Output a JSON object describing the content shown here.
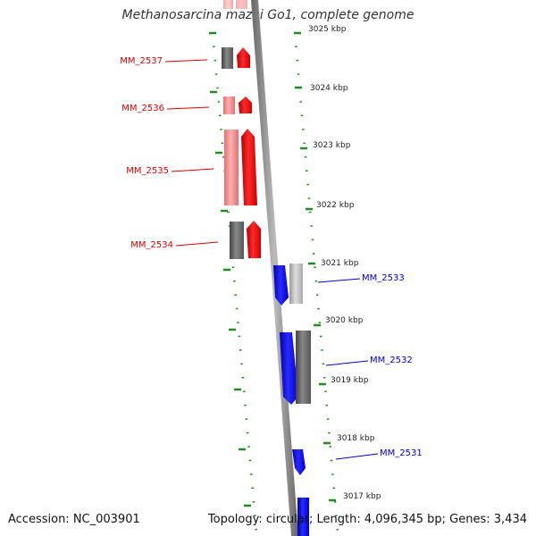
{
  "title": "Methanosarcina mazei Go1, complete genome",
  "accession_label": "Accession: NC_003901",
  "summary_label": "Topology: circular; Length: 4,096,345 bp; Genes: 3,434",
  "ticks": [
    "3025 kbp",
    "3024 kbp",
    "3023 kbp",
    "3022 kbp",
    "3021 kbp",
    "3020 kbp",
    "3019 kbp",
    "3018 kbp",
    "3017 kbp"
  ],
  "genes_forward": [
    {
      "name": "MM_2537",
      "color": "#dd0000"
    },
    {
      "name": "MM_2536",
      "color": "#dd0000"
    },
    {
      "name": "MM_2535",
      "color": "#dd0000"
    },
    {
      "name": "MM_2534",
      "color": "#dd0000"
    }
  ],
  "genes_reverse": [
    {
      "name": "MM_2533",
      "color": "#0000cc"
    },
    {
      "name": "MM_2532",
      "color": "#0000cc"
    },
    {
      "name": "MM_2531",
      "color": "#0000cc"
    }
  ],
  "colors": {
    "forward": "#ff0000",
    "forward_light": "#f08080",
    "reverse": "#0000ff",
    "gray": "#666666",
    "light_gray": "#bbbbbb",
    "backbone": "#888888",
    "dots": "#228b22"
  }
}
